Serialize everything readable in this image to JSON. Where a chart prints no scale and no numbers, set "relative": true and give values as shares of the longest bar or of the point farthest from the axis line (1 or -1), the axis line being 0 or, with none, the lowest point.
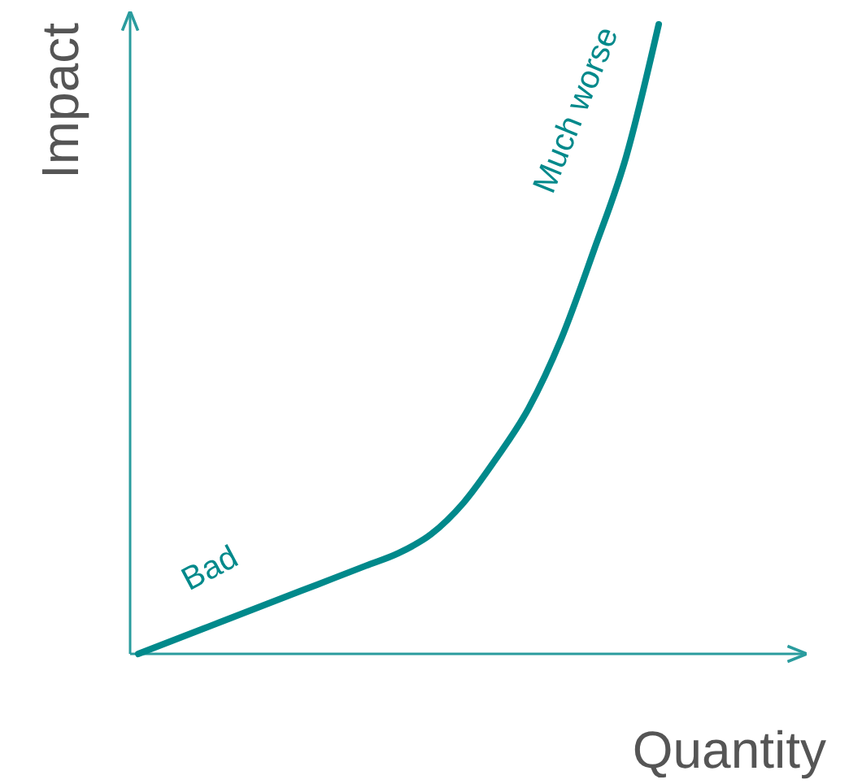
{
  "chart_data": {
    "type": "line",
    "xlabel": "Quantity",
    "ylabel": "Impact",
    "relative": true,
    "line_style": "solid",
    "marker": "none",
    "categories": [
      null,
      null,
      null,
      null,
      null,
      null,
      null,
      null,
      null,
      null,
      null,
      null,
      null,
      null,
      null,
      null,
      null
    ],
    "series": [
      {
        "color": "#00898b",
        "values": [
          0,
          0.02,
          0.04,
          0.06,
          0.08,
          0.1,
          0.12,
          0.14,
          0.16,
          0.19,
          0.24,
          0.31,
          0.39,
          0.5,
          0.64,
          0.79,
          1
        ]
      }
    ],
    "annotations": [
      "Bad",
      "Much worse"
    ]
  }
}
